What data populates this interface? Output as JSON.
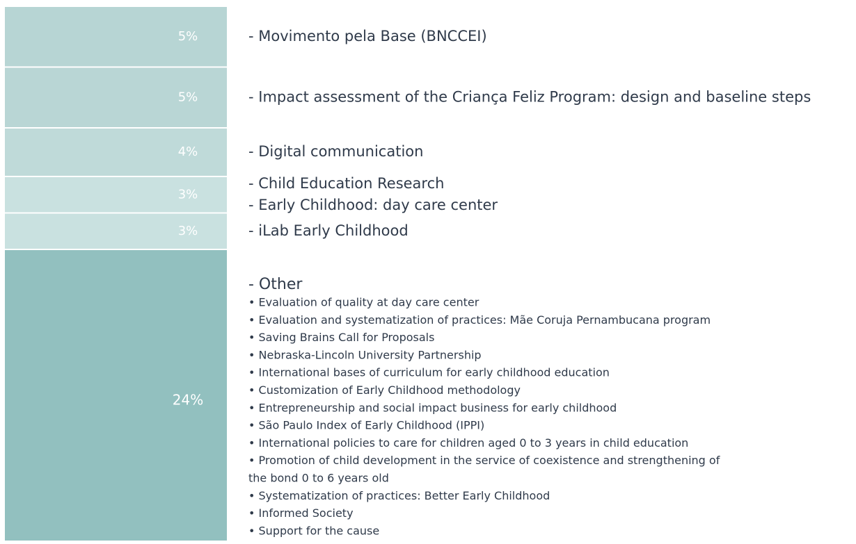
{
  "chart_data": {
    "type": "stacked_bar",
    "values": [
      5,
      5,
      4,
      3,
      3,
      24
    ],
    "value_labels": [
      "5%",
      "5%",
      "4%",
      "3%",
      "3%",
      "24%"
    ],
    "colors": [
      "#b7d5d4",
      "#b9d6d5",
      "#bfdad9",
      "#c9e1e0",
      "#c9e1e0",
      "#92c0bf"
    ],
    "labels": [
      [
        "- Movimento pela Base (BNCCEI)"
      ],
      [
        "- Impact assessment of the Criança Feliz Program: design and baseline steps"
      ],
      [
        "- Digital communication"
      ],
      [
        "- Child Education Research",
        "- Early Childhood: day care center"
      ],
      [
        "- iLab Early Childhood"
      ],
      [
        "- Other"
      ]
    ],
    "other_items": [
      "• Evaluation of quality at day care center",
      "• Evaluation and systematization of practices: Mãe Coruja Pernambucana program",
      "• Saving Brains Call for Proposals",
      "• Nebraska-Lincoln University Partnership",
      "• International bases of curriculum for early childhood education",
      "• Customization of Early Childhood methodology",
      "• Entrepreneurship and social impact business for early childhood",
      "• São Paulo Index of Early Childhood (IPPI)",
      "• International policies to care for children aged 0 to 3 years in child education",
      "• Promotion of child development in the service of coexistence and strengthening of",
      "the bond 0 to 6 years old",
      "• Systematization of practices: Better Early Childhood",
      "• Informed Society",
      "• Support for the cause"
    ]
  }
}
